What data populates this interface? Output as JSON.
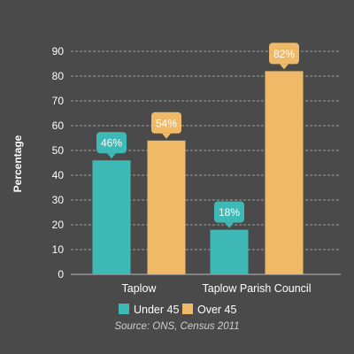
{
  "chart_data": {
    "type": "bar",
    "categories": [
      "Taplow",
      "Taplow Parish Council"
    ],
    "series": [
      {
        "name": "Under 45",
        "color": "#3fb9b5",
        "values": [
          46,
          18
        ],
        "labels": [
          "46%",
          "18%"
        ]
      },
      {
        "name": "Over 45",
        "color": "#efb968",
        "values": [
          54,
          82
        ],
        "labels": [
          "54%",
          "82%"
        ]
      }
    ],
    "ylabel": "Percentage",
    "ylim": [
      0,
      90
    ],
    "yticks": [
      0,
      10,
      20,
      30,
      40,
      50,
      60,
      70,
      80,
      90
    ],
    "grid": true,
    "gridline_color": "#cfcfcf",
    "legend_position": "bottom-center",
    "source": "Source: ONS, Census 2011"
  }
}
